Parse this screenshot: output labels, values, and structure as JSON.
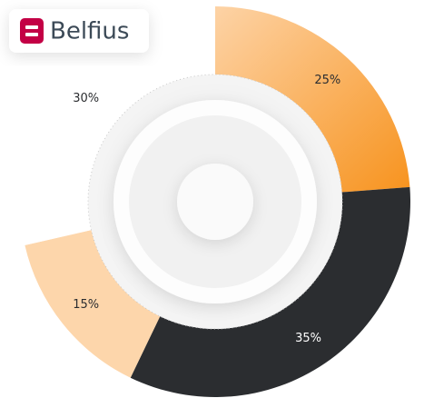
{
  "brand": "Belfius",
  "chart_data": {
    "type": "donut",
    "values": [
      25,
      35,
      15,
      30
    ],
    "value_labels": [
      "25%",
      "35%",
      "15%",
      "30%"
    ],
    "colors": [
      "#f7931e",
      "#2b2d30",
      "#fdd6ab",
      "#ffffff"
    ]
  }
}
